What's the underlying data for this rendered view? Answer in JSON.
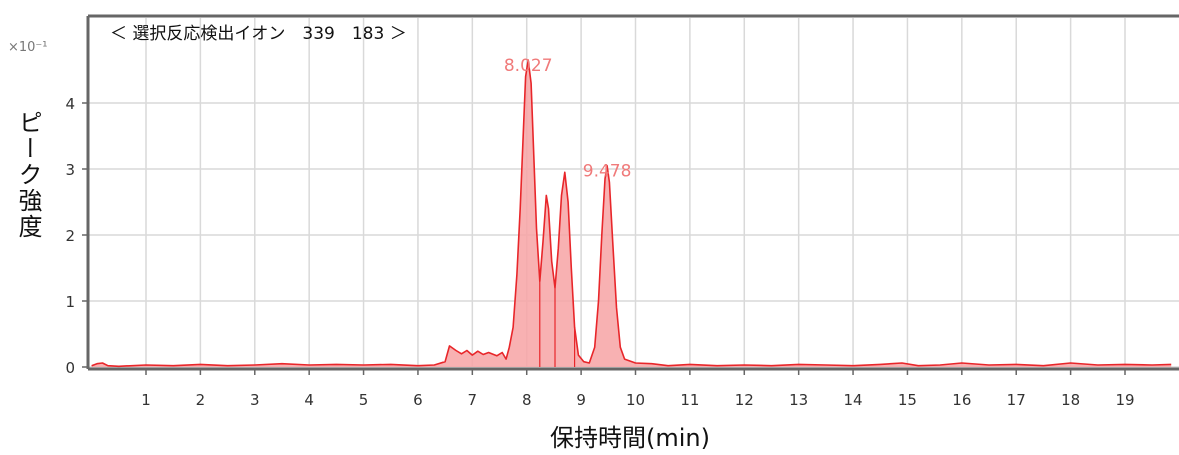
{
  "chart_data": {
    "type": "area",
    "title": "＜ 選択反応検出イオン　339　183 ＞",
    "xlabel": "保持時間(min)",
    "ylabel": "ピーク強度",
    "y_multiplier": "×10⁻¹",
    "xlim": [
      0.0,
      19.85
    ],
    "ylim": [
      -0.1,
      4.6
    ],
    "x_ticks": [
      1,
      2,
      3,
      4,
      5,
      6,
      7,
      8,
      9,
      10,
      11,
      12,
      13,
      14,
      15,
      16,
      17,
      18,
      19
    ],
    "y_ticks": [
      0,
      1,
      2,
      3,
      4
    ],
    "grid": true,
    "series": [
      {
        "color": "#e8262a",
        "fill": "#f7a3a5",
        "points": [
          [
            0.0,
            0.02
          ],
          [
            0.1,
            0.05
          ],
          [
            0.2,
            0.06
          ],
          [
            0.3,
            0.02
          ],
          [
            0.5,
            0.01
          ],
          [
            1.0,
            0.03
          ],
          [
            1.5,
            0.02
          ],
          [
            2.0,
            0.04
          ],
          [
            2.5,
            0.02
          ],
          [
            3.0,
            0.03
          ],
          [
            3.5,
            0.05
          ],
          [
            4.0,
            0.03
          ],
          [
            4.5,
            0.04
          ],
          [
            5.0,
            0.03
          ],
          [
            5.5,
            0.04
          ],
          [
            6.0,
            0.02
          ],
          [
            6.3,
            0.03
          ],
          [
            6.5,
            0.08
          ],
          [
            6.58,
            0.32
          ],
          [
            6.7,
            0.25
          ],
          [
            6.8,
            0.2
          ],
          [
            6.9,
            0.25
          ],
          [
            7.0,
            0.18
          ],
          [
            7.1,
            0.24
          ],
          [
            7.2,
            0.19
          ],
          [
            7.3,
            0.22
          ],
          [
            7.45,
            0.17
          ],
          [
            7.55,
            0.22
          ],
          [
            7.62,
            0.12
          ],
          [
            7.68,
            0.3
          ],
          [
            7.75,
            0.6
          ],
          [
            7.82,
            1.4
          ],
          [
            7.88,
            2.4
          ],
          [
            7.93,
            3.4
          ],
          [
            7.98,
            4.4
          ],
          [
            8.027,
            4.65
          ],
          [
            8.08,
            4.3
          ],
          [
            8.13,
            3.2
          ],
          [
            8.18,
            2.1
          ],
          [
            8.24,
            1.3
          ],
          [
            8.3,
            1.9
          ],
          [
            8.36,
            2.6
          ],
          [
            8.4,
            2.4
          ],
          [
            8.46,
            1.6
          ],
          [
            8.52,
            1.2
          ],
          [
            8.58,
            1.8
          ],
          [
            8.64,
            2.6
          ],
          [
            8.7,
            2.95
          ],
          [
            8.76,
            2.5
          ],
          [
            8.82,
            1.5
          ],
          [
            8.88,
            0.6
          ],
          [
            8.95,
            0.18
          ],
          [
            9.05,
            0.08
          ],
          [
            9.15,
            0.06
          ],
          [
            9.25,
            0.3
          ],
          [
            9.32,
            1.0
          ],
          [
            9.38,
            2.0
          ],
          [
            9.44,
            2.85
          ],
          [
            9.478,
            3.05
          ],
          [
            9.52,
            2.8
          ],
          [
            9.58,
            1.9
          ],
          [
            9.65,
            0.9
          ],
          [
            9.72,
            0.3
          ],
          [
            9.8,
            0.12
          ],
          [
            10.0,
            0.06
          ],
          [
            10.3,
            0.05
          ],
          [
            10.6,
            0.02
          ],
          [
            11.0,
            0.04
          ],
          [
            11.5,
            0.02
          ],
          [
            12.0,
            0.03
          ],
          [
            12.5,
            0.02
          ],
          [
            13.0,
            0.04
          ],
          [
            13.5,
            0.03
          ],
          [
            14.0,
            0.02
          ],
          [
            14.5,
            0.04
          ],
          [
            14.9,
            0.06
          ],
          [
            15.2,
            0.02
          ],
          [
            15.6,
            0.03
          ],
          [
            16.0,
            0.06
          ],
          [
            16.5,
            0.03
          ],
          [
            17.0,
            0.04
          ],
          [
            17.5,
            0.02
          ],
          [
            18.0,
            0.06
          ],
          [
            18.5,
            0.03
          ],
          [
            19.0,
            0.04
          ],
          [
            19.5,
            0.03
          ],
          [
            19.85,
            0.04
          ]
        ]
      }
    ],
    "annotations": [
      {
        "label": "8.027",
        "x": 8.027,
        "y": 4.65
      },
      {
        "label": "9.478",
        "x": 9.478,
        "y": 3.05
      }
    ]
  }
}
